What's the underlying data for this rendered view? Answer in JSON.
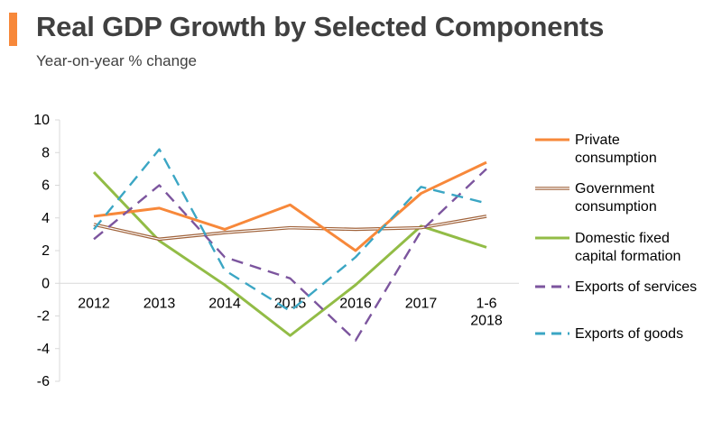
{
  "header": {
    "title": "Real GDP Growth by Selected Components",
    "subtitle": "Year-on-year % change",
    "accent_color": "#f7883a"
  },
  "chart_data": {
    "type": "line",
    "title": "Real GDP Growth by Selected Components",
    "subtitle": "Year-on-year % change",
    "xlabel": "",
    "ylabel": "",
    "ylim": [
      -6,
      10
    ],
    "yticks": [
      10,
      8,
      6,
      4,
      2,
      0,
      -2,
      -4,
      -6
    ],
    "grid": false,
    "legend_position": "right",
    "categories": [
      "2012",
      "2013",
      "2014",
      "2015",
      "2016",
      "2017",
      "1-6 2018"
    ],
    "category_lines": [
      [
        "2012"
      ],
      [
        "2013"
      ],
      [
        "2014"
      ],
      [
        "2015"
      ],
      [
        "2016"
      ],
      [
        "2017"
      ],
      [
        "1-6",
        "2018"
      ]
    ],
    "series": [
      {
        "name": "Private consumption",
        "legend_lines": [
          "Private",
          "consumption"
        ],
        "color": "#f7883a",
        "style": "solid",
        "values": [
          4.1,
          4.6,
          3.3,
          4.8,
          2.0,
          5.5,
          7.4
        ]
      },
      {
        "name": "Government consumption",
        "legend_lines": [
          "Government",
          "consumption"
        ],
        "color": "#a0623a",
        "style": "double",
        "values": [
          3.6,
          2.7,
          3.1,
          3.4,
          3.3,
          3.4,
          4.1
        ]
      },
      {
        "name": "Domestic fixed capital formation",
        "legend_lines": [
          "Domestic fixed",
          "capital formation"
        ],
        "color": "#92bc46",
        "style": "solid",
        "values": [
          6.8,
          2.6,
          -0.1,
          -3.2,
          -0.1,
          3.5,
          2.2
        ]
      },
      {
        "name": "Exports of services",
        "legend_lines": [
          "Exports of services"
        ],
        "color": "#7c559e",
        "style": "dashed",
        "values": [
          2.7,
          6.0,
          1.6,
          0.3,
          -3.5,
          3.2,
          7.0
        ]
      },
      {
        "name": "Exports of goods",
        "legend_lines": [
          "Exports of goods"
        ],
        "color": "#3ba6c4",
        "style": "dashed",
        "values": [
          3.3,
          8.2,
          0.8,
          -1.7,
          1.6,
          5.9,
          4.9
        ]
      }
    ]
  }
}
